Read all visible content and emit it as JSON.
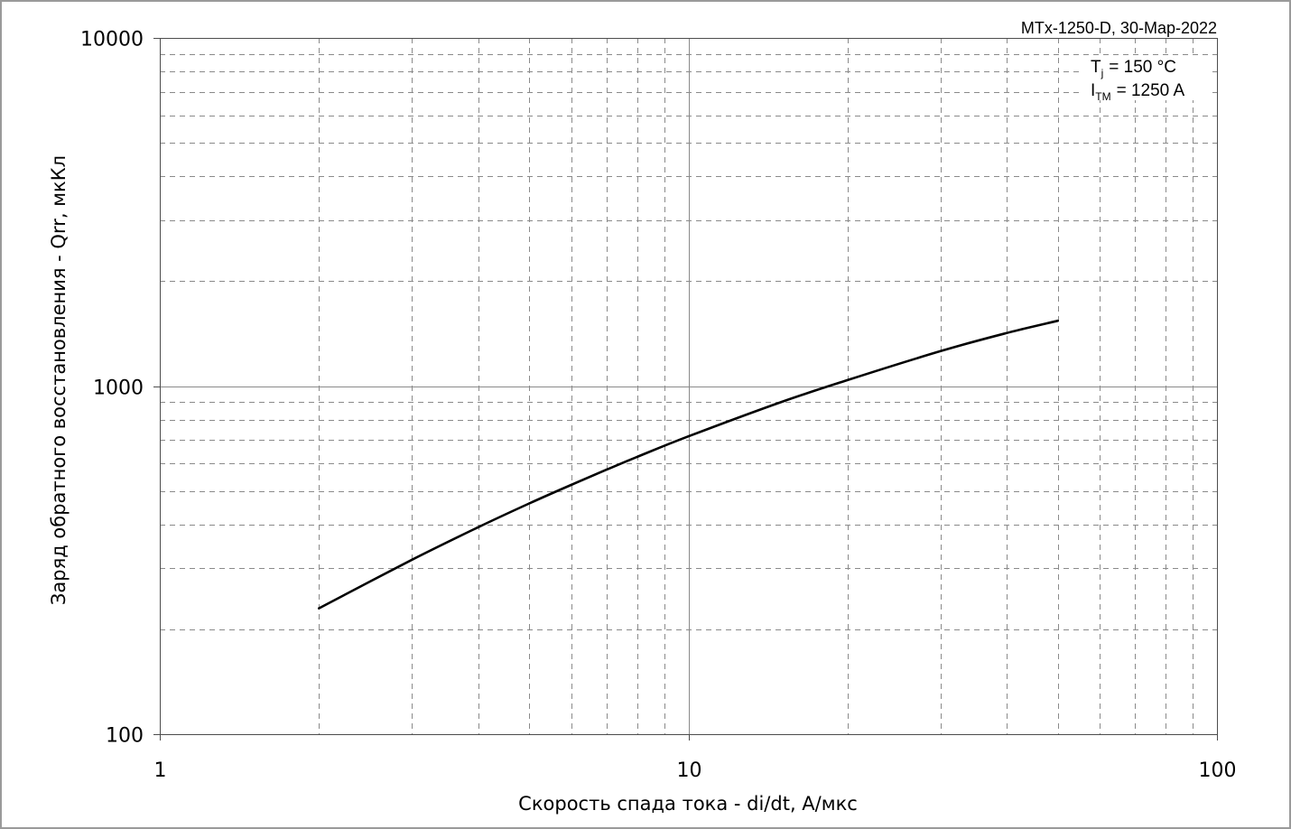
{
  "chart_data": {
    "type": "line",
    "title": "",
    "source_label": "MTx-1250-D, 30-Map-2022",
    "xlabel": "Скорость спада тока - di/dt, А/мкс",
    "ylabel": "Заряд обратного восстановления - Qrr, мкКл",
    "xscale": "log",
    "yscale": "log",
    "xlim": [
      1,
      100
    ],
    "ylim": [
      100,
      10000
    ],
    "xticks": [
      "1",
      "10",
      "100"
    ],
    "yticks": [
      "100",
      "1000",
      "10000"
    ],
    "grid": true,
    "annotations": [
      {
        "symbol": "T",
        "subscript": "j",
        "value": "= 150 °C"
      },
      {
        "symbol": "I",
        "subscript": "TM",
        "value": "= 1250 A"
      }
    ],
    "series": [
      {
        "color": "#000000",
        "x": [
          2,
          3,
          4,
          5,
          6,
          7,
          8,
          10,
          15,
          20,
          30,
          40,
          50
        ],
        "y": [
          230,
          317,
          393,
          460,
          520,
          575,
          626,
          717,
          900,
          1040,
          1260,
          1420,
          1540
        ]
      }
    ],
    "colors": {
      "grid": "#8a8a8a",
      "axis": "#4d4d4d",
      "frame": "#9a9a9a",
      "background": "#ffffff"
    }
  }
}
